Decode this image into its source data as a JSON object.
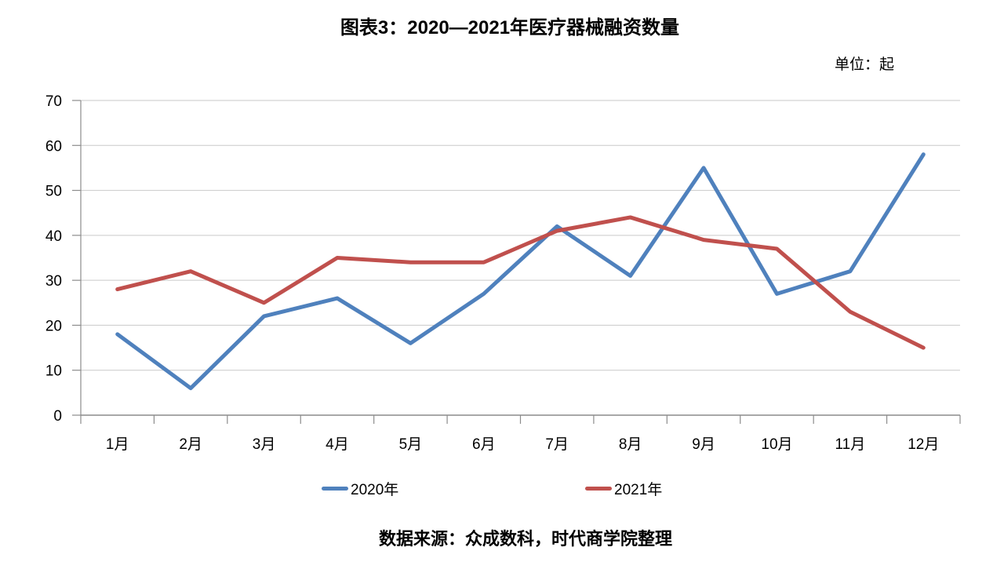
{
  "title": "图表3：2020—2021年医疗器械融资数量",
  "unit_label": "单位：起",
  "source": "数据来源：众成数科，时代商学院整理",
  "legend": [
    {
      "label": "2020年",
      "color": "#4F81BD"
    },
    {
      "label": "2021年",
      "color": "#C0504D"
    }
  ],
  "chart_data": {
    "type": "line",
    "categories": [
      "1月",
      "2月",
      "3月",
      "4月",
      "5月",
      "6月",
      "7月",
      "8月",
      "9月",
      "10月",
      "11月",
      "12月"
    ],
    "series": [
      {
        "name": "2020年",
        "color": "#4F81BD",
        "values": [
          18,
          6,
          22,
          26,
          16,
          27,
          42,
          31,
          55,
          27,
          32,
          58
        ]
      },
      {
        "name": "2021年",
        "color": "#C0504D",
        "values": [
          28,
          32,
          25,
          35,
          34,
          34,
          41,
          44,
          39,
          37,
          23,
          15
        ]
      }
    ],
    "title": "图表3：2020—2021年医疗器械融资数量",
    "xlabel": "",
    "ylabel": "单位：起",
    "ylim": [
      0,
      70
    ],
    "yticks": [
      0,
      10,
      20,
      30,
      40,
      50,
      60,
      70
    ],
    "grid": true,
    "legend_position": "bottom"
  },
  "colors": {
    "gridline": "#C9C9C9",
    "axis": "#8C8C8C",
    "text": "#000000"
  }
}
